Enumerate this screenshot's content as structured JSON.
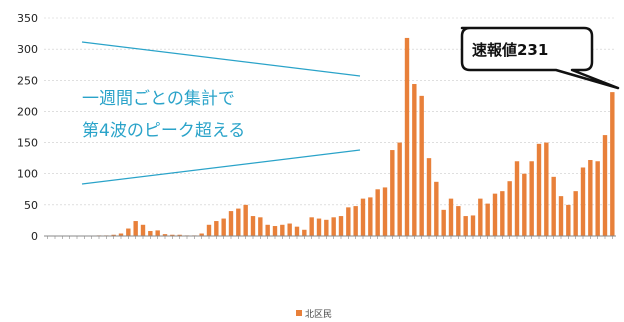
{
  "chart_data": {
    "type": "bar",
    "ylim": [
      0,
      350
    ],
    "yticks": [
      0,
      50,
      100,
      150,
      200,
      250,
      300,
      350
    ],
    "grid": true,
    "legend_position": "bottom-center",
    "series": [
      {
        "name": "北区民",
        "color": "#e8803a",
        "values": [
          0,
          0,
          0,
          0,
          0,
          0,
          0,
          1,
          1,
          2,
          4,
          12,
          24,
          18,
          8,
          9,
          3,
          2,
          2,
          1,
          1,
          4,
          18,
          24,
          28,
          40,
          44,
          50,
          32,
          30,
          18,
          16,
          18,
          20,
          15,
          10,
          30,
          28,
          26,
          30,
          32,
          46,
          48,
          60,
          62,
          75,
          78,
          138,
          150,
          318,
          244,
          225,
          125,
          87,
          42,
          60,
          48,
          32,
          33,
          60,
          52,
          68,
          72,
          88,
          120,
          100,
          120,
          148,
          150,
          95,
          64,
          50,
          72,
          110,
          122,
          120,
          162,
          231
        ]
      }
    ],
    "annotation": {
      "line1": "一週間ごとの集計で",
      "line2": "第4波のピーク超える"
    },
    "callout": "速報値231"
  }
}
